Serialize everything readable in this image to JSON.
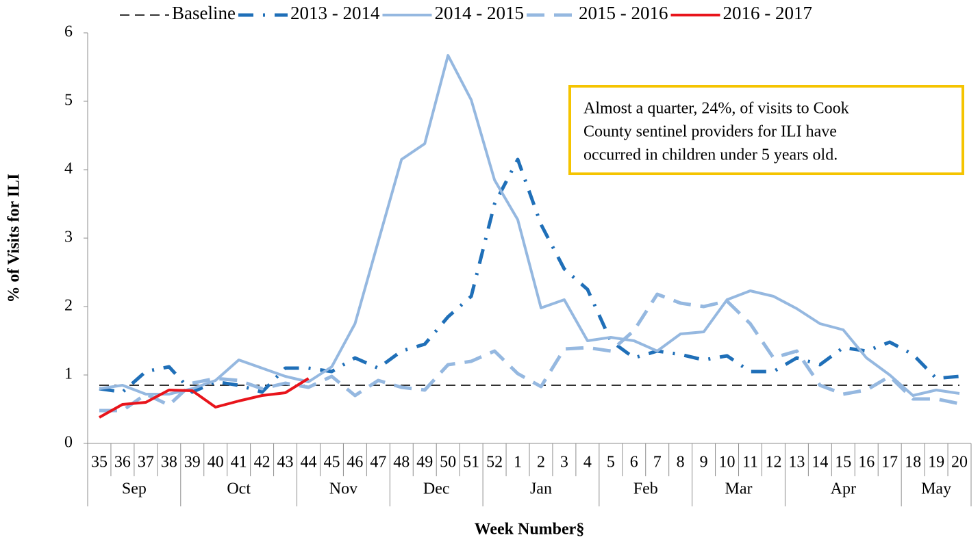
{
  "chart_data": {
    "type": "line",
    "categories": [
      "35",
      "36",
      "37",
      "38",
      "39",
      "40",
      "41",
      "42",
      "43",
      "44",
      "45",
      "46",
      "47",
      "48",
      "49",
      "50",
      "51",
      "52",
      "1",
      "2",
      "3",
      "4",
      "5",
      "6",
      "7",
      "8",
      "9",
      "10",
      "11",
      "12",
      "13",
      "14",
      "15",
      "16",
      "17",
      "18",
      "19",
      "20"
    ],
    "category_groups": [
      {
        "label": "Sep",
        "size": 4
      },
      {
        "label": "Oct",
        "size": 5
      },
      {
        "label": "Nov",
        "size": 4
      },
      {
        "label": "Dec",
        "size": 4
      },
      {
        "label": "Jan",
        "size": 5
      },
      {
        "label": "Feb",
        "size": 4
      },
      {
        "label": "Mar",
        "size": 4
      },
      {
        "label": "Apr",
        "size": 5
      },
      {
        "label": "May",
        "size": 3
      }
    ],
    "series": [
      {
        "name": "Baseline",
        "color": "#333333",
        "style": "dashed",
        "width": 2,
        "values": [
          0.85,
          0.85,
          0.85,
          0.85,
          0.85,
          0.85,
          0.85,
          0.85,
          0.85,
          0.85,
          0.85,
          0.85,
          0.85,
          0.85,
          0.85,
          0.85,
          0.85,
          0.85,
          0.85,
          0.85,
          0.85,
          0.85,
          0.85,
          0.85,
          0.85,
          0.85,
          0.85,
          0.85,
          0.85,
          0.85,
          0.85,
          0.85,
          0.85,
          0.85,
          0.85,
          0.85,
          0.85,
          0.85
        ]
      },
      {
        "name": "2013 - 2014",
        "color": "#1f6fb8",
        "style": "dash-dot",
        "width": 5,
        "values": [
          0.8,
          0.75,
          1.05,
          1.12,
          0.75,
          0.9,
          0.85,
          0.75,
          1.1,
          1.1,
          1.05,
          1.25,
          1.1,
          1.35,
          1.45,
          1.85,
          2.15,
          3.5,
          4.15,
          3.2,
          2.55,
          2.25,
          1.5,
          1.25,
          1.35,
          1.3,
          1.22,
          1.28,
          1.05,
          1.05,
          1.25,
          1.15,
          1.4,
          1.35,
          1.48,
          1.3,
          0.95,
          0.98
        ]
      },
      {
        "name": "2014 - 2015",
        "color": "#95b8e0",
        "style": "solid",
        "width": 4,
        "values": [
          0.8,
          0.85,
          0.72,
          0.72,
          0.8,
          0.92,
          1.22,
          1.1,
          0.98,
          0.9,
          1.12,
          1.75,
          2.95,
          4.15,
          4.38,
          5.67,
          5.02,
          3.85,
          3.27,
          1.98,
          2.1,
          1.5,
          1.55,
          1.5,
          1.35,
          1.6,
          1.63,
          2.1,
          2.23,
          2.15,
          1.97,
          1.75,
          1.66,
          1.25,
          1.0,
          0.7,
          0.78,
          0.73
        ]
      },
      {
        "name": "2015 - 2016",
        "color": "#95b8e0",
        "style": "long-dashed",
        "width": 5,
        "values": [
          0.48,
          0.48,
          0.72,
          0.56,
          0.88,
          0.95,
          0.92,
          0.8,
          0.88,
          0.82,
          0.98,
          0.7,
          0.92,
          0.82,
          0.78,
          1.15,
          1.2,
          1.35,
          1.02,
          0.83,
          1.38,
          1.4,
          1.35,
          1.65,
          2.18,
          2.05,
          2.0,
          2.08,
          1.75,
          1.25,
          1.35,
          0.85,
          0.72,
          0.78,
          0.98,
          0.65,
          0.65,
          0.58
        ]
      },
      {
        "name": "2016 - 2017",
        "color": "#e8141b",
        "style": "solid",
        "width": 4,
        "values": [
          0.38,
          0.57,
          0.6,
          0.78,
          0.77,
          0.53,
          0.62,
          0.7,
          0.74,
          0.95,
          null,
          null,
          null,
          null,
          null,
          null,
          null,
          null,
          null,
          null,
          null,
          null,
          null,
          null,
          null,
          null,
          null,
          null,
          null,
          null,
          null,
          null,
          null,
          null,
          null,
          null,
          null,
          null
        ]
      }
    ],
    "ylim": [
      0,
      6
    ],
    "yticks": [
      0,
      1,
      2,
      3,
      4,
      5,
      6
    ],
    "ylabel": "% of Visits for ILI",
    "xlabel": "Week Number§",
    "annotation": [
      "Almost a quarter, 24%, of visits to Cook",
      "County sentinel providers for ILI have",
      "occurred in children under 5 years old."
    ],
    "annotation_border": "#f5c400",
    "legend": "top"
  }
}
